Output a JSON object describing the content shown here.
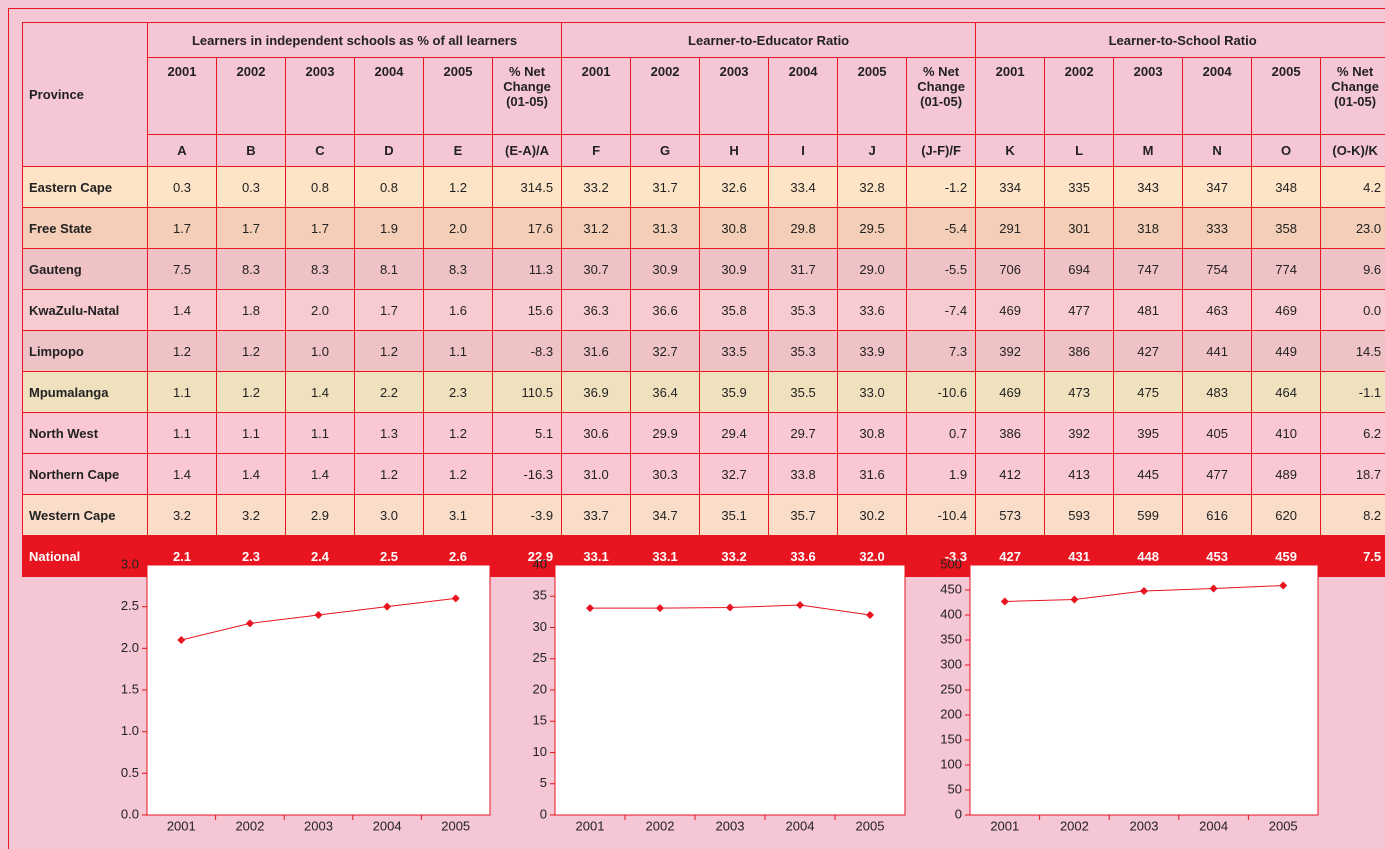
{
  "table": {
    "corner": "Province",
    "groups": [
      {
        "title": "Learners in independent schools as % of all learners",
        "years": [
          "2001",
          "2002",
          "2003",
          "2004",
          "2005",
          "% Net Change (01-05)"
        ],
        "letters": [
          "A",
          "B",
          "C",
          "D",
          "E",
          "(E-A)/A"
        ]
      },
      {
        "title": "Learner-to-Educator Ratio",
        "years": [
          "2001",
          "2002",
          "2003",
          "2004",
          "2005",
          "% Net Change (01-05)"
        ],
        "letters": [
          "F",
          "G",
          "H",
          "I",
          "J",
          "(J-F)/F"
        ]
      },
      {
        "title": "Learner-to-School Ratio",
        "years": [
          "2001",
          "2002",
          "2003",
          "2004",
          "2005",
          "% Net Change (01-05)"
        ],
        "letters": [
          "K",
          "L",
          "M",
          "N",
          "O",
          "(O-K)/K"
        ]
      }
    ],
    "rows": [
      {
        "province": "Eastern Cape",
        "color": "#fde4c6",
        "values": [
          "0.3",
          "0.3",
          "0.8",
          "0.8",
          "1.2",
          "314.5",
          "33.2",
          "31.7",
          "32.6",
          "33.4",
          "32.8",
          "-1.2",
          "334",
          "335",
          "343",
          "347",
          "348",
          "4.2"
        ]
      },
      {
        "province": "Free State",
        "color": "#f4ceb6",
        "values": [
          "1.7",
          "1.7",
          "1.7",
          "1.9",
          "2.0",
          "17.6",
          "31.2",
          "31.3",
          "30.8",
          "29.8",
          "29.5",
          "-5.4",
          "291",
          "301",
          "318",
          "333",
          "358",
          "23.0"
        ]
      },
      {
        "province": "Gauteng",
        "color": "#efc2c6",
        "values": [
          "7.5",
          "8.3",
          "8.3",
          "8.1",
          "8.3",
          "11.3",
          "30.7",
          "30.9",
          "30.9",
          "31.7",
          "29.0",
          "-5.5",
          "706",
          "694",
          "747",
          "754",
          "774",
          "9.6"
        ]
      },
      {
        "province": "KwaZulu-Natal",
        "color": "#f8cbd1",
        "values": [
          "1.4",
          "1.8",
          "2.0",
          "1.7",
          "1.6",
          "15.6",
          "36.3",
          "36.6",
          "35.8",
          "35.3",
          "33.6",
          "-7.4",
          "469",
          "477",
          "481",
          "463",
          "469",
          "0.0"
        ]
      },
      {
        "province": "Limpopo",
        "color": "#efc2c6",
        "values": [
          "1.2",
          "1.2",
          "1.0",
          "1.2",
          "1.1",
          "-8.3",
          "31.6",
          "32.7",
          "33.5",
          "35.3",
          "33.9",
          "7.3",
          "392",
          "386",
          "427",
          "441",
          "449",
          "14.5"
        ]
      },
      {
        "province": "Mpumalanga",
        "color": "#efe1bd",
        "values": [
          "1.1",
          "1.2",
          "1.4",
          "2.2",
          "2.3",
          "110.5",
          "36.9",
          "36.4",
          "35.9",
          "35.5",
          "33.0",
          "-10.6",
          "469",
          "473",
          "475",
          "483",
          "464",
          "-1.1"
        ]
      },
      {
        "province": "North West",
        "color": "#f9c8d2",
        "values": [
          "1.1",
          "1.1",
          "1.1",
          "1.3",
          "1.2",
          "5.1",
          "30.6",
          "29.9",
          "29.4",
          "29.7",
          "30.8",
          "0.7",
          "386",
          "392",
          "395",
          "405",
          "410",
          "6.2"
        ]
      },
      {
        "province": "Northern Cape",
        "color": "#f9c8d2",
        "values": [
          "1.4",
          "1.4",
          "1.4",
          "1.2",
          "1.2",
          "-16.3",
          "31.0",
          "30.3",
          "32.7",
          "33.8",
          "31.6",
          "1.9",
          "412",
          "413",
          "445",
          "477",
          "489",
          "18.7"
        ]
      },
      {
        "province": "Western Cape",
        "color": "#f9ddc9",
        "values": [
          "3.2",
          "3.2",
          "2.9",
          "3.0",
          "3.1",
          "-3.9",
          "33.7",
          "34.7",
          "35.1",
          "35.7",
          "30.2",
          "-10.4",
          "573",
          "593",
          "599",
          "616",
          "620",
          "8.2"
        ]
      },
      {
        "province": "National",
        "color": "#e8141f",
        "values": [
          "2.1",
          "2.3",
          "2.4",
          "2.5",
          "2.6",
          "22.9",
          "33.1",
          "33.1",
          "33.2",
          "33.6",
          "32.0",
          "-3.3",
          "427",
          "431",
          "448",
          "453",
          "459",
          "7.5"
        ]
      }
    ]
  },
  "chart_data": [
    {
      "type": "line",
      "categories": [
        "2001",
        "2002",
        "2003",
        "2004",
        "2005"
      ],
      "series": [
        {
          "color": "#e8141f",
          "values": [
            2.1,
            2.3,
            2.4,
            2.5,
            2.6
          ]
        }
      ],
      "ylim": [
        0,
        3
      ],
      "yticks": [
        {
          "value": 0,
          "label": "0.0"
        },
        {
          "value": 0.5,
          "label": "0.5"
        },
        {
          "value": 1,
          "label": "1.0"
        },
        {
          "value": 1.5,
          "label": "1.5"
        },
        {
          "value": 2,
          "label": "2.0"
        },
        {
          "value": 2.5,
          "label": "2.5"
        },
        {
          "value": 3,
          "label": "3.0"
        }
      ]
    },
    {
      "type": "line",
      "categories": [
        "2001",
        "2002",
        "2003",
        "2004",
        "2005"
      ],
      "series": [
        {
          "color": "#e8141f",
          "values": [
            33.1,
            33.1,
            33.2,
            33.6,
            32.0
          ]
        }
      ],
      "ylim": [
        0,
        40
      ],
      "yticks": [
        0,
        5,
        10,
        15,
        20,
        25,
        30,
        35,
        40
      ]
    },
    {
      "type": "line",
      "categories": [
        "2001",
        "2002",
        "2003",
        "2004",
        "2005"
      ],
      "series": [
        {
          "color": "#e8141f",
          "values": [
            427,
            431,
            448,
            453,
            459
          ]
        }
      ],
      "ylim": [
        0,
        500
      ],
      "yticks": [
        0,
        50,
        100,
        150,
        200,
        250,
        300,
        350,
        400,
        450,
        500
      ]
    }
  ]
}
